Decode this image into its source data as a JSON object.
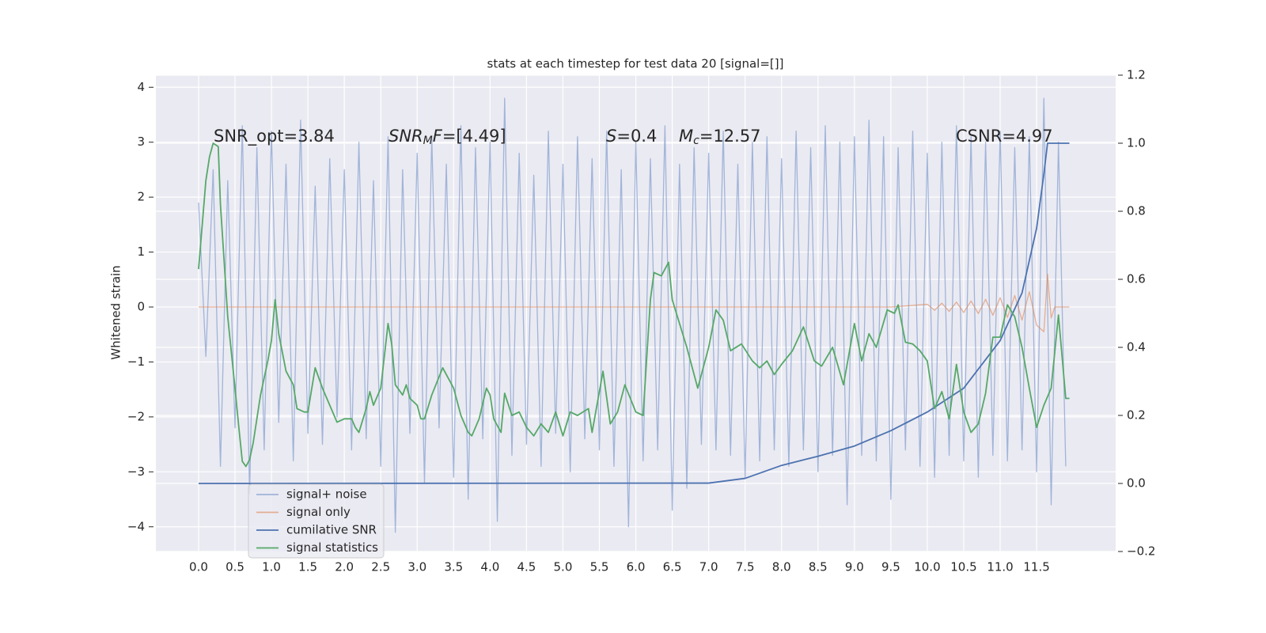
{
  "chart_data": {
    "type": "line",
    "title": "stats at each timestep for test data 20 [signal=[]]",
    "ylabel": "Whitened strain",
    "xlim": [
      -0.586,
      12.585
    ],
    "ylim": [
      -4.45,
      4.22
    ],
    "y2lim": [
      -0.2,
      1.2
    ],
    "xticks": [
      {
        "value": 0,
        "label": "0.0"
      },
      0.5,
      {
        "value": 1,
        "label": "1.0"
      },
      1.5,
      {
        "value": 2,
        "label": "2.0"
      },
      2.5,
      {
        "value": 3,
        "label": "3.0"
      },
      3.5,
      {
        "value": 4,
        "label": "4.0"
      },
      4.5,
      {
        "value": 5,
        "label": "5.0"
      },
      5.5,
      {
        "value": 6,
        "label": "6.0"
      },
      6.5,
      {
        "value": 7,
        "label": "7.0"
      },
      7.5,
      {
        "value": 8,
        "label": "8.0"
      },
      8.5,
      {
        "value": 9,
        "label": "9.0"
      },
      9.5,
      {
        "value": 10,
        "label": "10.0"
      },
      10.5,
      {
        "value": 11,
        "label": "11.0"
      },
      11.5
    ],
    "yticks": [
      {
        "value": -4,
        "label": "−4"
      },
      {
        "value": -3,
        "label": "−3"
      },
      {
        "value": -2,
        "label": "−2"
      },
      {
        "value": -1,
        "label": "−1"
      },
      0,
      1,
      2,
      3,
      4
    ],
    "y2ticks": [
      {
        "value": -0.2,
        "label": "−0.2"
      },
      {
        "value": 0,
        "label": "0.0"
      },
      0.2,
      0.4,
      0.6,
      0.8,
      {
        "value": 1,
        "label": "1.0"
      },
      1.2
    ],
    "grid": true,
    "legend": "lower left",
    "series": [
      {
        "name": "signal+ noise",
        "color": "#8fa6d2",
        "alpha": 0.8,
        "x": [
          0,
          0.1,
          0.2,
          0.3,
          0.4,
          0.5,
          0.6,
          0.7,
          0.8,
          0.9,
          1,
          1.1,
          1.2,
          1.3,
          1.4,
          1.5,
          1.6,
          1.7,
          1.8,
          1.9,
          2,
          2.1,
          2.2,
          2.3,
          2.4,
          2.5,
          2.6,
          2.7,
          2.8,
          2.9,
          3,
          3.1,
          3.2,
          3.3,
          3.4,
          3.5,
          3.6,
          3.7,
          3.8,
          3.9,
          4,
          4.1,
          4.2,
          4.3,
          4.4,
          4.5,
          4.6,
          4.7,
          4.8,
          4.9,
          5,
          5.1,
          5.2,
          5.3,
          5.4,
          5.5,
          5.6,
          5.7,
          5.8,
          5.9,
          6,
          6.1,
          6.2,
          6.3,
          6.4,
          6.5,
          6.6,
          6.7,
          6.8,
          6.9,
          7,
          7.1,
          7.2,
          7.3,
          7.4,
          7.5,
          7.6,
          7.7,
          7.8,
          7.9,
          8,
          8.1,
          8.2,
          8.3,
          8.4,
          8.5,
          8.6,
          8.7,
          8.8,
          8.9,
          9,
          9.1,
          9.2,
          9.3,
          9.4,
          9.5,
          9.6,
          9.7,
          9.8,
          9.9,
          10,
          10.1,
          10.2,
          10.3,
          10.4,
          10.5,
          10.6,
          10.7,
          10.8,
          10.9,
          11,
          11.1,
          11.2,
          11.3,
          11.4,
          11.5,
          11.6,
          11.7,
          11.8,
          11.9
        ],
        "values": [
          1.9,
          -0.9,
          2.5,
          -2.9,
          2.3,
          -2.2,
          3.3,
          -3.4,
          2.9,
          -2.6,
          3.2,
          -2.1,
          2.6,
          -2.8,
          3.4,
          -2.3,
          2.2,
          -2.5,
          2.7,
          -2.0,
          2.5,
          -2.6,
          3.0,
          -2.4,
          2.3,
          -2.9,
          3.1,
          -4.1,
          2.5,
          -2.3,
          2.8,
          -3.2,
          3.1,
          -2.2,
          2.6,
          -3.1,
          3.3,
          -3.5,
          2.9,
          -2.4,
          3.0,
          -3.9,
          3.8,
          -2.7,
          2.8,
          -2.5,
          2.4,
          -2.9,
          3.2,
          -2.3,
          2.6,
          -3.0,
          3.1,
          -2.4,
          2.7,
          -2.6,
          3.2,
          -2.9,
          2.5,
          -4.0,
          3.0,
          -2.8,
          2.7,
          -2.6,
          3.3,
          -3.7,
          2.6,
          -3.3,
          2.9,
          -2.5,
          2.8,
          -2.6,
          3.2,
          -2.7,
          2.6,
          -3.1,
          3.0,
          -2.8,
          3.1,
          -2.6,
          2.7,
          -2.9,
          3.2,
          -2.6,
          2.9,
          -3.0,
          3.3,
          -2.7,
          3.0,
          -3.6,
          3.1,
          -2.7,
          3.4,
          -2.8,
          3.1,
          -3.5,
          2.9,
          -2.6,
          3.2,
          -2.9,
          2.8,
          -3.1,
          3.0,
          -2.7,
          3.3,
          -2.8,
          3.1,
          -3.1,
          3.0,
          -2.7,
          3.2,
          -2.8,
          2.9,
          -2.6,
          3.1,
          -3.0,
          3.8,
          -3.6,
          3.0,
          -2.9
        ]
      },
      {
        "name": "signal only",
        "color": "#dd8452",
        "alpha": 0.6,
        "x": [
          0,
          9.5,
          10,
          10.1,
          10.2,
          10.3,
          10.4,
          10.5,
          10.6,
          10.7,
          10.8,
          10.9,
          11,
          11.1,
          11.2,
          11.3,
          11.4,
          11.5,
          11.6,
          11.65,
          11.7,
          11.75,
          11.95
        ],
        "values": [
          0,
          0,
          0.05,
          -0.06,
          0.07,
          -0.08,
          0.09,
          -0.1,
          0.11,
          -0.12,
          0.14,
          -0.15,
          0.17,
          -0.19,
          0.21,
          -0.24,
          0.28,
          -0.33,
          -0.45,
          0.6,
          -0.2,
          0,
          0
        ]
      },
      {
        "name": "cumilative SNR",
        "color": "#4c72b0",
        "axis": "y2",
        "x": [
          0,
          7,
          7.5,
          8,
          8.5,
          9,
          9.5,
          10,
          10.5,
          11,
          11.3,
          11.5,
          11.6,
          11.65,
          11.95
        ],
        "values": [
          0,
          0.001,
          0.015,
          0.053,
          0.08,
          0.11,
          0.155,
          0.21,
          0.28,
          0.42,
          0.56,
          0.75,
          0.91,
          1,
          1
        ]
      },
      {
        "name": "signal statistics",
        "color": "#55a868",
        "axis": "y2",
        "x": [
          0,
          0.1,
          0.15,
          0.2,
          0.27,
          0.3,
          0.4,
          0.5,
          0.55,
          0.6,
          0.65,
          0.7,
          0.75,
          0.85,
          0.95,
          1,
          1.05,
          1.1,
          1.2,
          1.3,
          1.35,
          1.45,
          1.5,
          1.6,
          1.7,
          1.8,
          1.9,
          2,
          2.1,
          2.15,
          2.2,
          2.3,
          2.35,
          2.4,
          2.5,
          2.6,
          2.65,
          2.7,
          2.8,
          2.85,
          2.9,
          3,
          3.05,
          3.1,
          3.2,
          3.35,
          3.5,
          3.6,
          3.7,
          3.75,
          3.85,
          3.95,
          4,
          4.05,
          4.15,
          4.2,
          4.3,
          4.4,
          4.5,
          4.6,
          4.7,
          4.8,
          4.9,
          5,
          5.1,
          5.2,
          5.35,
          5.4,
          5.55,
          5.65,
          5.75,
          5.85,
          6,
          6.1,
          6.2,
          6.25,
          6.35,
          6.45,
          6.5,
          6.6,
          6.7,
          6.85,
          7,
          7.1,
          7.2,
          7.3,
          7.45,
          7.6,
          7.7,
          7.8,
          7.9,
          8,
          8.15,
          8.3,
          8.45,
          8.55,
          8.7,
          8.85,
          9,
          9.1,
          9.2,
          9.3,
          9.45,
          9.55,
          9.6,
          9.7,
          9.8,
          9.9,
          10,
          10.1,
          10.2,
          10.3,
          10.4,
          10.5,
          10.6,
          10.7,
          10.8,
          10.9,
          11,
          11.1,
          11.2,
          11.3,
          11.4,
          11.5,
          11.6,
          11.7,
          11.8,
          11.9,
          11.95
        ],
        "values": [
          0.63,
          0.89,
          0.96,
          1,
          0.99,
          0.82,
          0.49,
          0.28,
          0.17,
          0.065,
          0.05,
          0.07,
          0.12,
          0.26,
          0.36,
          0.42,
          0.54,
          0.44,
          0.33,
          0.29,
          0.22,
          0.21,
          0.21,
          0.34,
          0.28,
          0.23,
          0.18,
          0.19,
          0.19,
          0.165,
          0.15,
          0.22,
          0.27,
          0.23,
          0.28,
          0.47,
          0.41,
          0.29,
          0.26,
          0.29,
          0.25,
          0.23,
          0.19,
          0.19,
          0.26,
          0.34,
          0.28,
          0.2,
          0.15,
          0.14,
          0.19,
          0.28,
          0.26,
          0.19,
          0.15,
          0.265,
          0.2,
          0.21,
          0.165,
          0.14,
          0.175,
          0.15,
          0.21,
          0.14,
          0.21,
          0.2,
          0.22,
          0.15,
          0.33,
          0.175,
          0.21,
          0.29,
          0.21,
          0.2,
          0.54,
          0.62,
          0.61,
          0.65,
          0.54,
          0.47,
          0.4,
          0.28,
          0.4,
          0.51,
          0.48,
          0.39,
          0.41,
          0.36,
          0.34,
          0.36,
          0.32,
          0.35,
          0.39,
          0.46,
          0.36,
          0.345,
          0.4,
          0.29,
          0.47,
          0.36,
          0.44,
          0.4,
          0.51,
          0.5,
          0.525,
          0.415,
          0.41,
          0.39,
          0.36,
          0.22,
          0.27,
          0.19,
          0.35,
          0.21,
          0.15,
          0.175,
          0.265,
          0.43,
          0.43,
          0.525,
          0.49,
          0.4,
          0.28,
          0.165,
          0.23,
          0.28,
          0.495,
          0.25,
          0.25
        ]
      }
    ],
    "annotations": [
      {
        "parts": [
          {
            "text": "SNR_opt=3.84"
          }
        ]
      },
      {
        "parts": [
          {
            "text": "SNR",
            "italic": true
          },
          {
            "text": "M",
            "italic": true,
            "sub": true
          },
          {
            "text": "F",
            "italic": true
          },
          {
            "text": "=[4.49]"
          }
        ]
      },
      {
        "parts": [
          {
            "text": "S",
            "italic": true
          },
          {
            "text": "=0.4"
          }
        ]
      },
      {
        "parts": [
          {
            "text": "M",
            "italic": true
          },
          {
            "text": "c",
            "italic": true,
            "sub": true
          },
          {
            "text": "=12.57"
          }
        ]
      },
      {
        "parts": [
          {
            "text": "CSNR=4.97"
          }
        ]
      }
    ]
  }
}
